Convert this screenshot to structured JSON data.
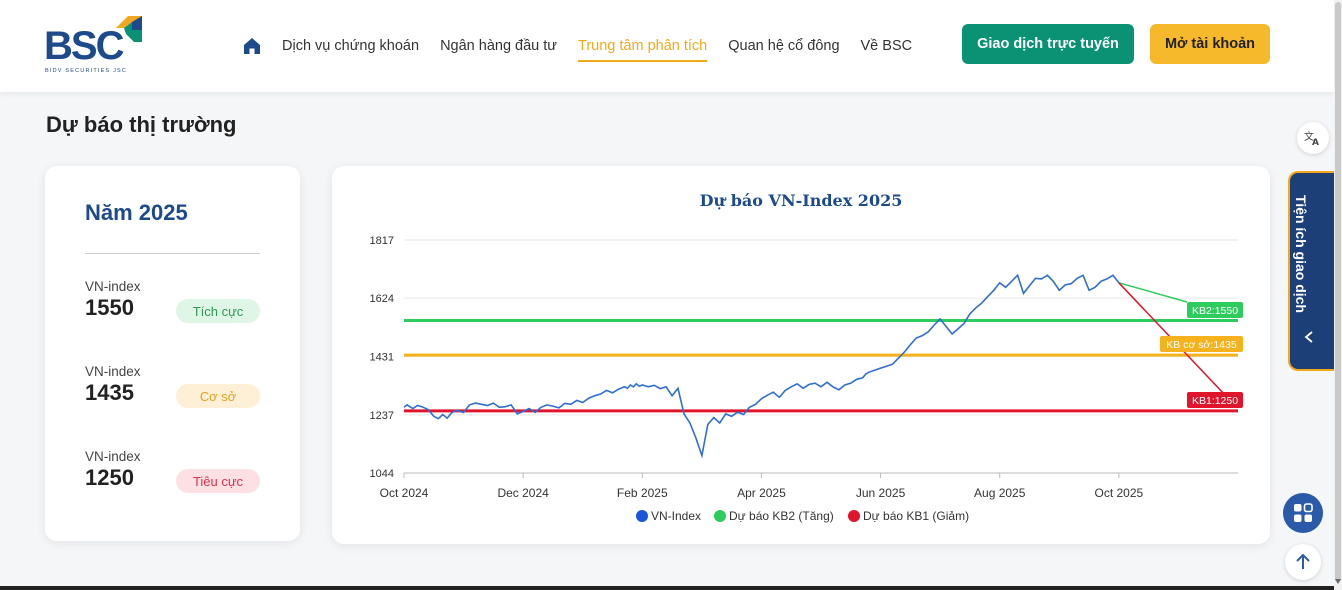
{
  "brand": {
    "name": "BSC",
    "subtitle": "BIDV SECURITIES JSC",
    "colors": {
      "primary": "#1c4a8b",
      "accent": "#f2a81d",
      "green": "#0b9275"
    }
  },
  "nav": {
    "home_icon": "home-icon",
    "items": [
      {
        "label": "Dịch vụ chứng khoán",
        "active": false
      },
      {
        "label": "Ngân hàng đầu tư",
        "active": false
      },
      {
        "label": "Trung tâm phân tích",
        "active": true
      },
      {
        "label": "Quan hệ cổ đông",
        "active": false
      },
      {
        "label": "Về BSC",
        "active": false
      }
    ],
    "trade_button": "Giao dịch trực tuyến",
    "open_account_button": "Mở tài khoản"
  },
  "section": {
    "title": "Dự báo thị trường"
  },
  "forecast_card": {
    "year_title": "Năm 2025",
    "items": [
      {
        "label": "VN-index",
        "value": "1550",
        "badge": "Tích cực",
        "badge_bg": "#dff5e6",
        "badge_color": "#2e9a52"
      },
      {
        "label": "VN-index",
        "value": "1435",
        "badge": "Cơ sở",
        "badge_bg": "#fdf0d6",
        "badge_color": "#e3a321"
      },
      {
        "label": "VN-index",
        "value": "1250",
        "badge": "Tiêu cực",
        "badge_bg": "#fde0e3",
        "badge_color": "#d6334a"
      }
    ]
  },
  "side_tab": {
    "label": "Tiện ích giao dịch"
  },
  "chart_data": {
    "type": "line",
    "title": "Dự báo VN-Index 2025",
    "xlabel": "",
    "ylabel": "",
    "y_ticks": [
      1044,
      1237,
      1431,
      1624,
      1817
    ],
    "ylim": [
      1044,
      1817
    ],
    "x_ticks": [
      "Oct 2024",
      "Dec 2024",
      "Feb 2025",
      "Apr 2025",
      "Jun 2025",
      "Aug 2025",
      "Oct 2025"
    ],
    "grid": true,
    "legend_position": "bottom",
    "legend": [
      {
        "name": "VN-Index",
        "color": "#1a56db"
      },
      {
        "name": "Dự báo KB2 (Tăng)",
        "color": "#2ecc5e"
      },
      {
        "name": "Dự báo KB1 (Giảm)",
        "color": "#e0142b"
      }
    ],
    "reference_lines": [
      {
        "label": "KB2:1550",
        "value": 1550,
        "color": "#2ecc5e"
      },
      {
        "label": "KB cơ sở:1435",
        "value": 1435,
        "color": "#f5b21c"
      },
      {
        "label": "KB1:1250",
        "value": 1250,
        "color": "#e0142b"
      }
    ],
    "series": [
      {
        "name": "VN-Index",
        "color": "#2f6fd0",
        "x": [
          0,
          0.1,
          0.3,
          0.45,
          0.6,
          0.8,
          1.0,
          1.15,
          1.3,
          1.45,
          1.6,
          1.75,
          2.0,
          2.2,
          2.4,
          2.6,
          2.8,
          3.0,
          3.2,
          3.4,
          3.6,
          3.8,
          4.0,
          4.2,
          4.4,
          4.6,
          4.8,
          5.0,
          5.2,
          5.4,
          5.6,
          5.8,
          6.0,
          6.2,
          6.4,
          6.6,
          6.8,
          7.0,
          7.2,
          7.4,
          7.5,
          7.6,
          7.7,
          7.8,
          7.9,
          8.0,
          8.2,
          8.4,
          8.6,
          8.8,
          9.0,
          9.2,
          9.4,
          9.6,
          9.8,
          10.0,
          10.2,
          10.4,
          10.6,
          10.8,
          11.0,
          11.2,
          11.4,
          11.5,
          11.6,
          11.8,
          12.0,
          12.2,
          12.4,
          12.6,
          12.8,
          13.0,
          13.2,
          13.4,
          13.6,
          13.8,
          14.0,
          14.2,
          14.4,
          14.6,
          14.8,
          15.0,
          15.2,
          15.4,
          15.5,
          15.6,
          15.8,
          16.0,
          16.2,
          16.4,
          16.6,
          16.8,
          17.0,
          17.2,
          17.4,
          17.6,
          17.8,
          18.0,
          18.2,
          18.4,
          18.6,
          18.8,
          19.0,
          19.2,
          19.4,
          19.6,
          19.8,
          20.0,
          20.2,
          20.4,
          20.6,
          20.8,
          21.0,
          21.2,
          21.4,
          21.6,
          21.8,
          22.0,
          22.2,
          22.4,
          22.6,
          22.8,
          23.0,
          23.2,
          23.4,
          23.6,
          23.8,
          24.0
        ],
        "y": [
          1262,
          1270,
          1258,
          1268,
          1264,
          1255,
          1232,
          1224,
          1238,
          1226,
          1244,
          1252,
          1245,
          1270,
          1276,
          1272,
          1268,
          1276,
          1262,
          1264,
          1270,
          1240,
          1248,
          1258,
          1245,
          1262,
          1270,
          1266,
          1260,
          1275,
          1272,
          1285,
          1278,
          1292,
          1300,
          1306,
          1318,
          1310,
          1322,
          1330,
          1325,
          1336,
          1330,
          1340,
          1332,
          1336,
          1330,
          1335,
          1324,
          1330,
          1300,
          1325,
          1240,
          1210,
          1160,
          1102,
          1205,
          1228,
          1210,
          1240,
          1232,
          1246,
          1238,
          1250,
          1262,
          1272,
          1290,
          1302,
          1312,
          1295,
          1318,
          1330,
          1340,
          1325,
          1338,
          1342,
          1330,
          1345,
          1330,
          1320,
          1336,
          1342,
          1355,
          1360,
          1372,
          1378,
          1385,
          1392,
          1398,
          1405,
          1425,
          1445,
          1470,
          1492,
          1500,
          1512,
          1535,
          1555,
          1530,
          1505,
          1522,
          1540,
          1572,
          1592,
          1608,
          1630,
          1650,
          1675,
          1660,
          1680,
          1700,
          1640,
          1665,
          1690,
          1688,
          1700,
          1680,
          1650,
          1668,
          1672,
          1690,
          1700,
          1650,
          1660,
          1680,
          1688,
          1700,
          1675
        ],
        "_note_skip": ""
      }
    ]
  }
}
